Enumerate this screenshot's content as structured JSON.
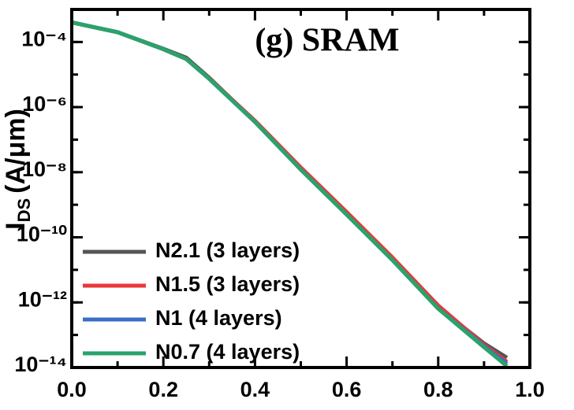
{
  "chart_data": {
    "type": "line",
    "title": "(g) SRAM",
    "y_label": {
      "main": "I",
      "sub": "DS",
      "unit": "(A/μm)"
    },
    "x": [
      0,
      0.1,
      0.2,
      0.25,
      0.3,
      0.4,
      0.5,
      0.6,
      0.7,
      0.8,
      0.9,
      0.95
    ],
    "series": [
      {
        "name": "N2.1 (3 layers)",
        "color": "#555555",
        "values": [
          0.0004,
          0.0002,
          6.2e-05,
          3.3e-05,
          8e-06,
          3.6e-07,
          1.3e-08,
          5.2e-10,
          2.1e-11,
          7e-13,
          5.5e-14,
          2e-14
        ]
      },
      {
        "name": "N1.5 (3 layers)",
        "color": "#e8393a",
        "values": [
          0.0004,
          0.0002,
          6e-05,
          3e-05,
          7.6e-06,
          3.8e-07,
          1.4e-08,
          6e-10,
          2.4e-11,
          8e-13,
          5e-14,
          1.5e-14
        ]
      },
      {
        "name": "N1 (4 layers)",
        "color": "#3a6fc4",
        "values": [
          0.0004,
          0.0002,
          6e-05,
          3e-05,
          7.4e-06,
          3.5e-07,
          1.2e-08,
          5e-10,
          2e-11,
          6.5e-13,
          4.5e-14,
          1.3e-14
        ]
      },
      {
        "name": "N0.7 (4 layers)",
        "color": "#2aa36b",
        "values": [
          0.0004,
          0.0002,
          6e-05,
          3e-05,
          7.4e-06,
          3.5e-07,
          1.2e-08,
          5e-10,
          2e-11,
          6.4e-13,
          4.2e-14,
          1.1e-14
        ]
      }
    ],
    "log_y": true,
    "xlim": [
      0,
      1
    ],
    "ylim": [
      1e-14,
      0.001
    ],
    "xticks": [
      {
        "value": 0,
        "label": "0.0"
      },
      0.2,
      0.4,
      0.6,
      0.8,
      {
        "value": 1,
        "label": "1.0"
      }
    ],
    "yticks": [
      {
        "value": 1e-14,
        "label": "10⁻¹⁴"
      },
      {
        "value": 1e-12,
        "label": "10⁻¹²"
      },
      {
        "value": 1e-10,
        "label": "10⁻¹⁰"
      },
      {
        "value": 1e-08,
        "label": "10⁻⁸"
      },
      {
        "value": 1e-06,
        "label": "10⁻⁶"
      },
      {
        "value": 0.0001,
        "label": "10⁻⁴"
      }
    ]
  }
}
